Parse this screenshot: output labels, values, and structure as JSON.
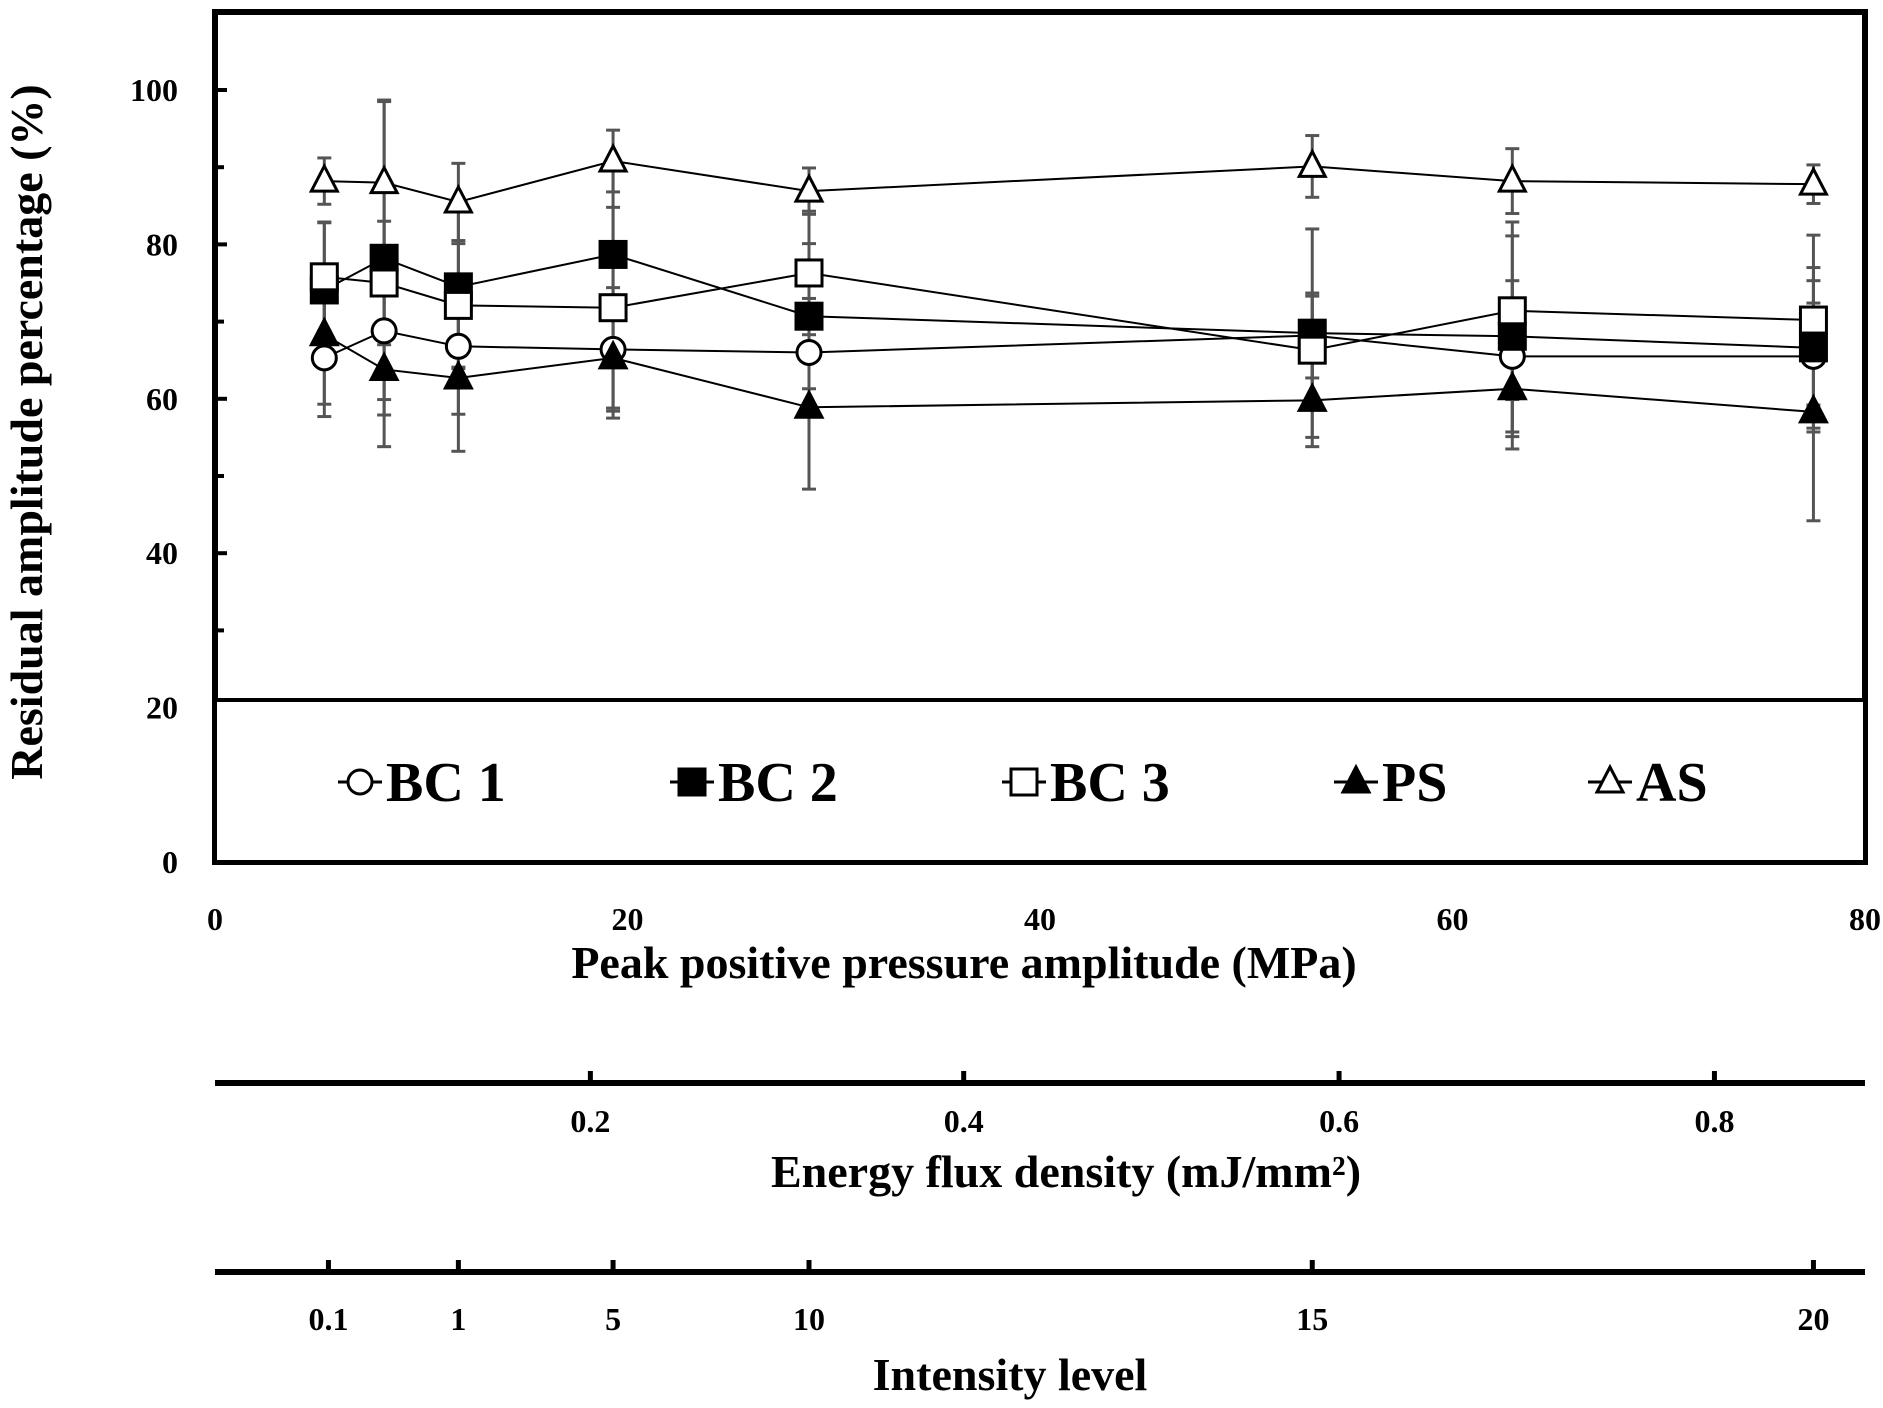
{
  "chart_data": {
    "type": "line",
    "ylabel": "Residual amplitude percentage (%)",
    "xlabel": "Peak positive pressure amplitude (MPa)",
    "xlim": [
      0,
      80
    ],
    "ylim": [
      0,
      110
    ],
    "x_ticks": [
      0,
      20,
      40,
      60,
      80
    ],
    "y_ticks": [
      0,
      20,
      40,
      60,
      80,
      100
    ],
    "x": [
      5.3,
      8.2,
      11.8,
      19.3,
      28.8,
      53.2,
      62.9,
      77.5
    ],
    "legend_position": "bottom-inside",
    "series": [
      {
        "name": "BC 1",
        "marker": "circle",
        "filled": false,
        "values": [
          65.3,
          68.8,
          66.8,
          66.4,
          66.0,
          68.2,
          65.5,
          65.5
        ],
        "errors": [
          7.6,
          8.9,
          8.8,
          8.0,
          7.0,
          5.5,
          9.8,
          9.8
        ]
      },
      {
        "name": "BC 2",
        "marker": "square",
        "filled": true,
        "values": [
          74.1,
          78.2,
          74.5,
          78.7,
          70.7,
          68.5,
          68.1,
          66.6
        ],
        "errors": [
          8.8,
          20.3,
          10.6,
          11.0,
          9.4,
          13.5,
          13.0,
          10.4
        ],
        "errors_note": "error half-widths estimated"
      },
      {
        "name": "BC 3",
        "marker": "square",
        "filled": false,
        "values": [
          75.8,
          75.0,
          72.1,
          71.8,
          76.3,
          66.3,
          71.4,
          70.2
        ],
        "errors": [
          7.0,
          8.0,
          8.0,
          13.0,
          8.0,
          7.0,
          11.5,
          11.0
        ],
        "errors_note": "error half-widths estimated"
      },
      {
        "name": "PS",
        "marker": "triangle",
        "filled": true,
        "values": [
          68.3,
          63.8,
          62.7,
          65.3,
          58.9,
          59.8,
          61.3,
          58.3
        ],
        "errors": [
          9.0,
          10.0,
          9.5,
          7.8,
          10.6,
          6.0,
          7.8,
          14.1
        ]
      },
      {
        "name": "AS",
        "marker": "triangle",
        "filled": false,
        "values": [
          88.2,
          88.0,
          85.5,
          90.8,
          86.9,
          90.1,
          88.2,
          87.8
        ],
        "errors": [
          3.0,
          10.7,
          5.0,
          4.0,
          3.0,
          4.0,
          4.2,
          2.5
        ]
      }
    ],
    "secondary_axes": [
      {
        "title": "Energy flux density (mJ/mm²)",
        "tick_labels": [
          "0.2",
          "0.4",
          "0.6",
          "0.8"
        ],
        "tick_positions_mpa": [
          18.2,
          36.3,
          54.5,
          72.7
        ]
      },
      {
        "title": "Intensity level",
        "tick_labels": [
          "0.1",
          "1",
          "5",
          "10",
          "15",
          "20"
        ],
        "tick_positions_mpa": [
          5.5,
          11.8,
          19.3,
          28.8,
          53.2,
          77.5
        ]
      }
    ]
  }
}
